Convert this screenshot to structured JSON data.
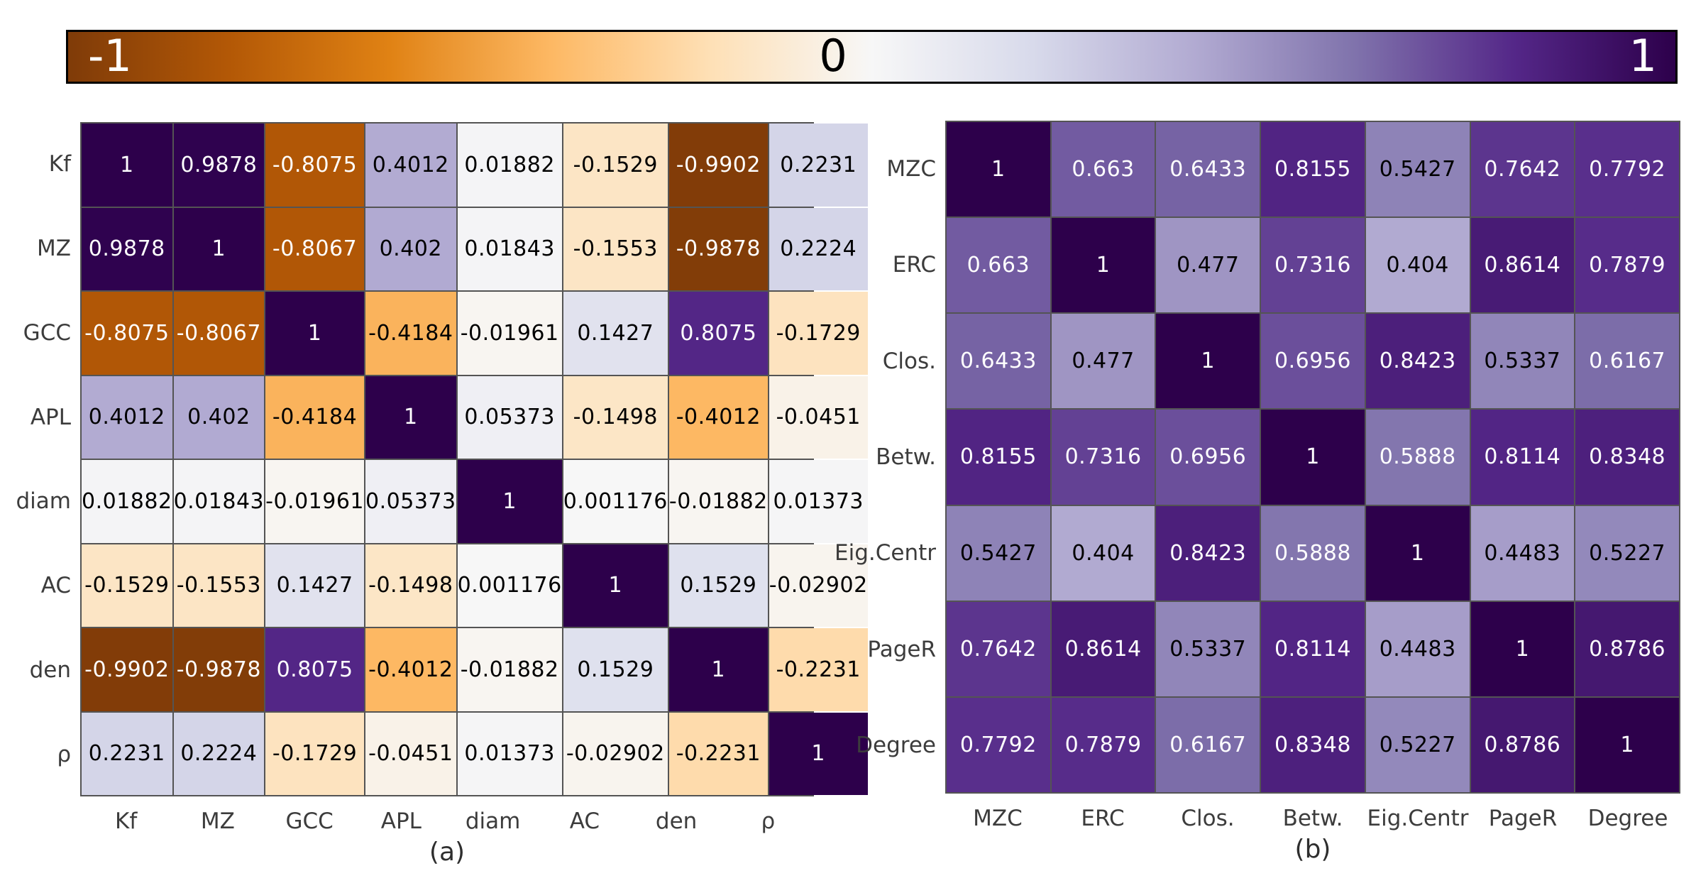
{
  "colorbar": {
    "tick_min": "-1",
    "tick_mid": "0",
    "tick_max": "1",
    "border_color": "#000000",
    "colormap_stops": [
      "#7f3b08",
      "#b35806",
      "#e08214",
      "#fdb863",
      "#fee0b6",
      "#f7f7f7",
      "#d8daeb",
      "#b2abd2",
      "#8073ac",
      "#542788",
      "#2d004b"
    ]
  },
  "grid_line_color": "#545454",
  "label_color": "#3c3c3c",
  "chart_data": [
    {
      "type": "heatmap",
      "title": "(a)",
      "colormap": "PuOr reversed: -1 dark orange, 0 white, 1 dark purple",
      "vmin": -1,
      "vmax": 1,
      "labels": [
        "Kf",
        "MZ",
        "GCC",
        "APL",
        "diam",
        "AC",
        "den",
        "ρ"
      ],
      "matrix": [
        [
          "1",
          "0.9878",
          "-0.8075",
          "0.4012",
          "0.01882",
          "-0.1529",
          "-0.9902",
          "0.2231"
        ],
        [
          "0.9878",
          "1",
          "-0.8067",
          "0.402",
          "0.01843",
          "-0.1553",
          "-0.9878",
          "0.2224"
        ],
        [
          "-0.8075",
          "-0.8067",
          "1",
          "-0.4184",
          "-0.01961",
          "0.1427",
          "0.8075",
          "-0.1729"
        ],
        [
          "0.4012",
          "0.402",
          "-0.4184",
          "1",
          "0.05373",
          "-0.1498",
          "-0.4012",
          "-0.0451"
        ],
        [
          "0.01882",
          "0.01843",
          "-0.01961",
          "0.05373",
          "1",
          "0.001176",
          "-0.01882",
          "0.01373"
        ],
        [
          "-0.1529",
          "-0.1553",
          "0.1427",
          "-0.1498",
          "0.001176",
          "1",
          "0.1529",
          "-0.02902"
        ],
        [
          "-0.9902",
          "-0.9878",
          "0.8075",
          "-0.4012",
          "-0.01882",
          "0.1529",
          "1",
          "-0.2231"
        ],
        [
          "0.2231",
          "0.2224",
          "-0.1729",
          "-0.0451",
          "0.01373",
          "-0.02902",
          "-0.2231",
          "1"
        ]
      ]
    },
    {
      "type": "heatmap",
      "title": "(b)",
      "colormap": "PuOr reversed: -1 dark orange, 0 white, 1 dark purple",
      "vmin": -1,
      "vmax": 1,
      "labels": [
        "MZC",
        "ERC",
        "Clos.",
        "Betw.",
        "Eig.Centr",
        "PageR",
        "Degree"
      ],
      "matrix": [
        [
          "1",
          "0.663",
          "0.6433",
          "0.8155",
          "0.5427",
          "0.7642",
          "0.7792"
        ],
        [
          "0.663",
          "1",
          "0.477",
          "0.7316",
          "0.404",
          "0.8614",
          "0.7879"
        ],
        [
          "0.6433",
          "0.477",
          "1",
          "0.6956",
          "0.8423",
          "0.5337",
          "0.6167"
        ],
        [
          "0.8155",
          "0.7316",
          "0.6956",
          "1",
          "0.5888",
          "0.8114",
          "0.8348"
        ],
        [
          "0.5427",
          "0.404",
          "0.8423",
          "0.5888",
          "1",
          "0.4483",
          "0.5227"
        ],
        [
          "0.7642",
          "0.8614",
          "0.5337",
          "0.8114",
          "0.4483",
          "1",
          "0.8786"
        ],
        [
          "0.7792",
          "0.7879",
          "0.6167",
          "0.8348",
          "0.5227",
          "0.8786",
          "1"
        ]
      ]
    }
  ]
}
